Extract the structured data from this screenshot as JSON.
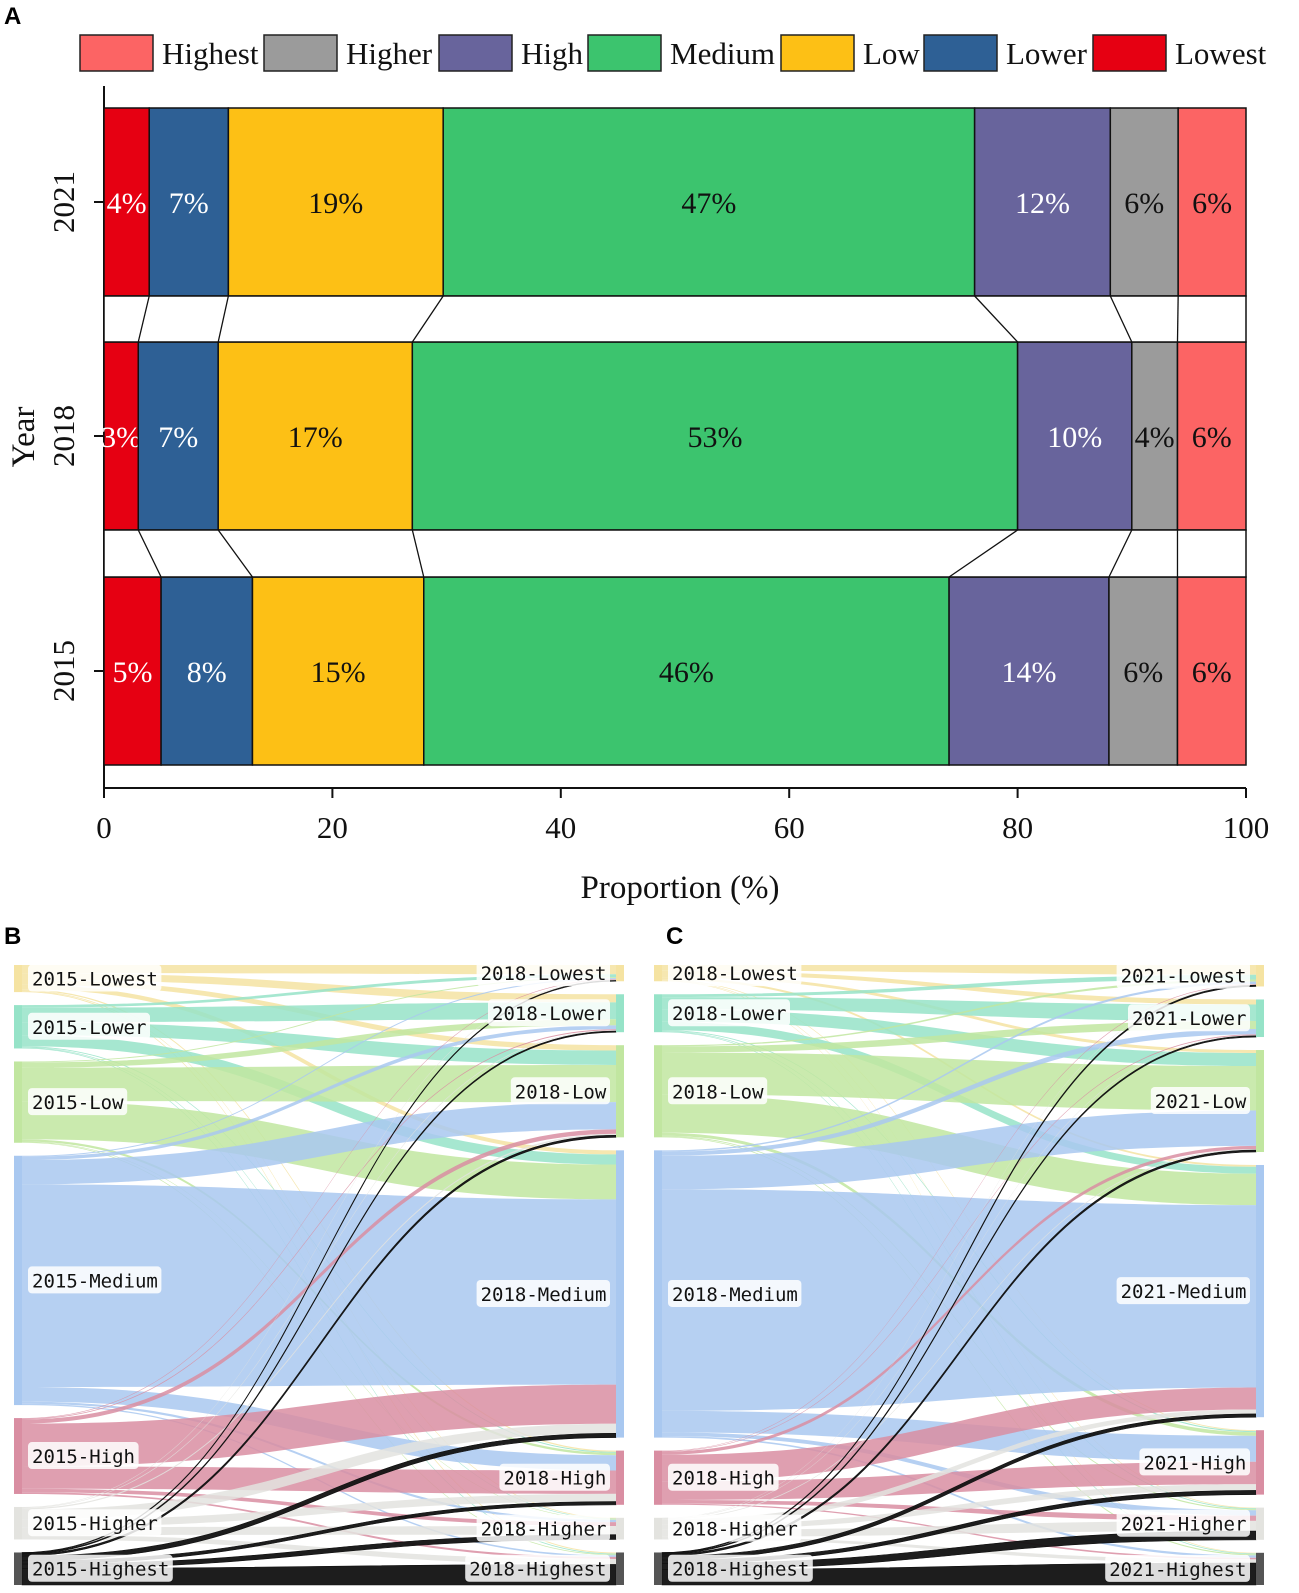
{
  "panels": {
    "a": "A",
    "b": "B",
    "c": "C"
  },
  "chart_data": [
    {
      "type": "bar",
      "orientation": "horizontal-stacked",
      "panel": "A",
      "categories": [
        "2021",
        "2018",
        "2015"
      ],
      "series": [
        {
          "name": "Lowest",
          "color": "#e60012",
          "values": [
            4,
            3,
            5
          ],
          "labels": [
            "4%",
            "3%",
            "5%"
          ]
        },
        {
          "name": "Lower",
          "color": "#2e6095",
          "values": [
            7,
            7,
            8
          ],
          "labels": [
            "7%",
            "7%",
            "8%"
          ]
        },
        {
          "name": "Low",
          "color": "#fdc015",
          "values": [
            19,
            17,
            15
          ],
          "labels": [
            "19%",
            "17%",
            "15%"
          ]
        },
        {
          "name": "Medium",
          "color": "#3cc46e",
          "values": [
            47,
            53,
            46
          ],
          "labels": [
            "47%",
            "53%",
            "46%"
          ]
        },
        {
          "name": "High",
          "color": "#68649c",
          "values": [
            12,
            10,
            14
          ],
          "labels": [
            "12%",
            "10%",
            "14%"
          ]
        },
        {
          "name": "Higher",
          "color": "#9b9b9b",
          "values": [
            6,
            4,
            6
          ],
          "labels": [
            "6%",
            "4%",
            "6%"
          ]
        },
        {
          "name": "Highest",
          "color": "#fc6464",
          "values": [
            6,
            6,
            6
          ],
          "labels": [
            "6%",
            "6%",
            "6%"
          ]
        }
      ],
      "legend_order": [
        "Highest",
        "Higher",
        "High",
        "Medium",
        "Low",
        "Lower",
        "Lowest"
      ],
      "xlabel": "Proportion (%)",
      "ylabel": "Year",
      "xlim": [
        0,
        100
      ],
      "xticks": [
        "0",
        "20",
        "40",
        "60",
        "80",
        "100"
      ],
      "legend": "top"
    },
    {
      "type": "sankey",
      "panel": "B",
      "left_nodes": [
        "2015-Lowest",
        "2015-Lower",
        "2015-Low",
        "2015-Medium",
        "2015-High",
        "2015-Higher",
        "2015-Highest"
      ],
      "right_nodes": [
        "2018-Lowest",
        "2018-Lower",
        "2018-Low",
        "2018-Medium",
        "2018-High",
        "2018-Higher",
        "2018-Highest"
      ],
      "left_values": [
        5,
        8,
        15,
        46,
        14,
        6,
        6
      ],
      "right_values": [
        3,
        7,
        17,
        53,
        10,
        4,
        6
      ]
    },
    {
      "type": "sankey",
      "panel": "C",
      "left_nodes": [
        "2018-Lowest",
        "2018-Lower",
        "2018-Low",
        "2018-Medium",
        "2018-High",
        "2018-Higher",
        "2018-Highest"
      ],
      "right_nodes": [
        "2021-Lowest",
        "2021-Lower",
        "2021-Low",
        "2021-Medium",
        "2021-High",
        "2021-Higher",
        "2021-Highest"
      ],
      "left_values": [
        3,
        7,
        17,
        53,
        10,
        4,
        6
      ],
      "right_values": [
        4,
        7,
        19,
        47,
        12,
        6,
        6
      ]
    }
  ],
  "colors": {
    "sankey": [
      "#f5e3a2",
      "#96e3c8",
      "#c1e6a0",
      "#a9c8f0",
      "#d98ea2",
      "#e3e3df",
      "#111111"
    ]
  }
}
